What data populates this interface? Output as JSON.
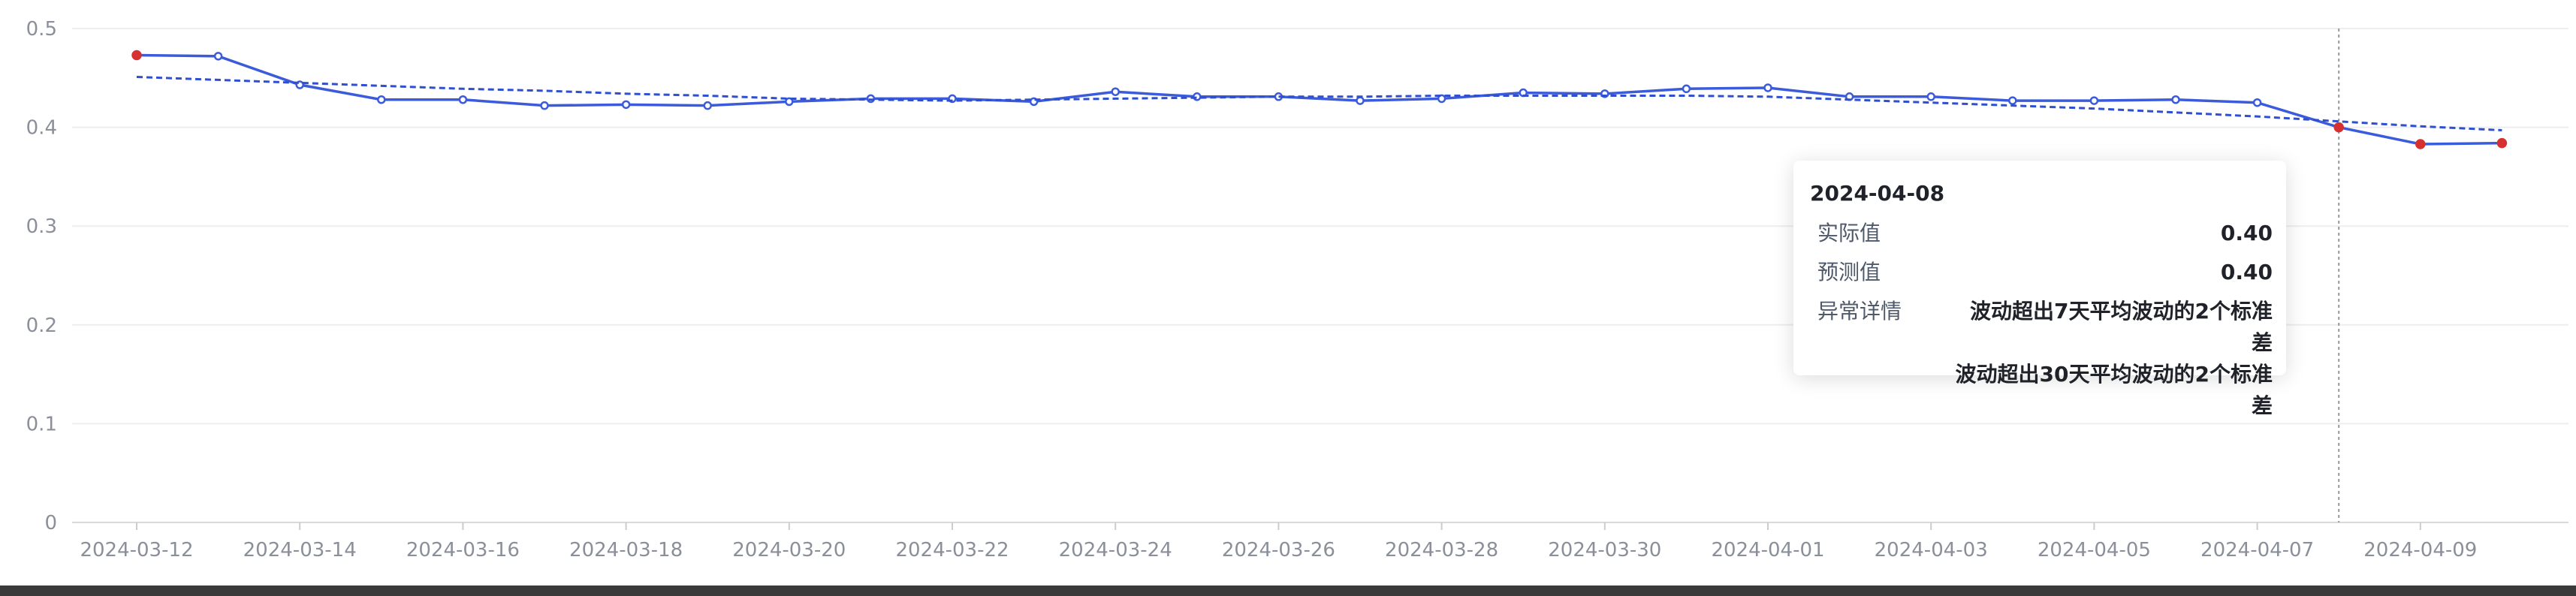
{
  "chart_data": {
    "type": "line",
    "x": [
      "2024-03-12",
      "2024-03-13",
      "2024-03-14",
      "2024-03-15",
      "2024-03-16",
      "2024-03-17",
      "2024-03-18",
      "2024-03-19",
      "2024-03-20",
      "2024-03-21",
      "2024-03-22",
      "2024-03-23",
      "2024-03-24",
      "2024-03-25",
      "2024-03-26",
      "2024-03-27",
      "2024-03-28",
      "2024-03-29",
      "2024-03-30",
      "2024-03-31",
      "2024-04-01",
      "2024-04-02",
      "2024-04-03",
      "2024-04-04",
      "2024-04-05",
      "2024-04-06",
      "2024-04-07",
      "2024-04-08",
      "2024-04-09",
      "2024-04-10"
    ],
    "x_tick_labels": [
      "2024-03-12",
      "2024-03-14",
      "2024-03-16",
      "2024-03-18",
      "2024-03-20",
      "2024-03-22",
      "2024-03-24",
      "2024-03-26",
      "2024-03-28",
      "2024-03-30",
      "2024-04-01",
      "2024-04-03",
      "2024-04-05",
      "2024-04-07",
      "2024-04-09"
    ],
    "y_ticks": [
      "0",
      "0.1",
      "0.2",
      "0.3",
      "0.4",
      "0.5"
    ],
    "ylim": [
      0,
      0.5
    ],
    "grid": true,
    "series": [
      {
        "style": "solid",
        "color": "#3b5bdb",
        "values": [
          0.473,
          0.472,
          0.443,
          0.428,
          0.428,
          0.422,
          0.423,
          0.422,
          0.426,
          0.429,
          0.429,
          0.426,
          0.436,
          0.431,
          0.431,
          0.427,
          0.429,
          0.435,
          0.434,
          0.439,
          0.44,
          0.431,
          0.431,
          0.427,
          0.427,
          0.428,
          0.425,
          0.4,
          0.383,
          0.384
        ],
        "anomaly_indices": [
          0,
          27,
          28,
          29
        ],
        "anomaly_color": "#d63031"
      },
      {
        "style": "dashed",
        "color": "#2f4fd1",
        "values": [
          0.451,
          0.448,
          0.445,
          0.442,
          0.439,
          0.437,
          0.434,
          0.432,
          0.429,
          0.428,
          0.427,
          0.428,
          0.429,
          0.43,
          0.431,
          0.431,
          0.432,
          0.432,
          0.432,
          0.432,
          0.431,
          0.428,
          0.425,
          0.422,
          0.419,
          0.415,
          0.411,
          0.406,
          0.401,
          0.397
        ]
      }
    ],
    "crosshair_index": 27
  },
  "tooltip": {
    "date": "2024-04-08",
    "actual_label": "实际值",
    "actual_value": "0.40",
    "predicted_label": "预测值",
    "predicted_value": "0.40",
    "anomaly_label": "异常详情",
    "anomaly_line1": "波动超出7天平均波动的2个标准差",
    "anomaly_line2": "波动超出30天平均波动的2个标准差"
  }
}
